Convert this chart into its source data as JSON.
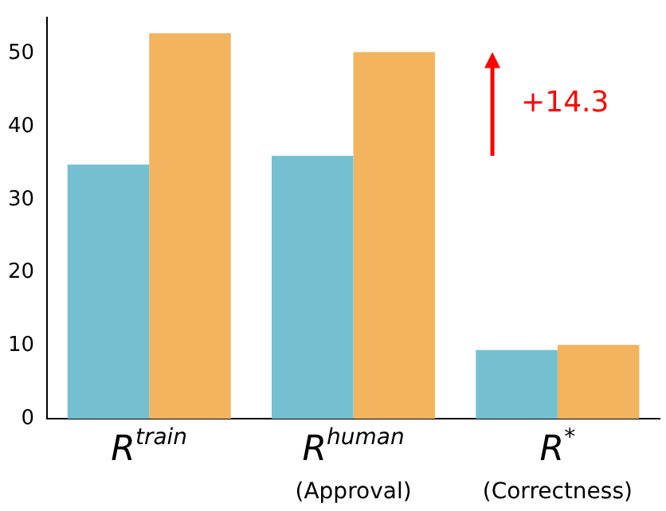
{
  "chart_data": {
    "type": "bar",
    "categories": [
      "R$^{train}$",
      "R$^{human}$\n(Approval)",
      "R$^{*}$\n(Correctness)"
    ],
    "series": [
      {
        "color": "#74c0d0",
        "values": [
          34.8,
          36.0,
          9.4
        ]
      },
      {
        "color": "#f2b45e",
        "values": [
          52.8,
          50.2,
          10.1
        ]
      }
    ],
    "ylim": [
      0,
      55
    ],
    "yticks": [
      0,
      10,
      20,
      30,
      40,
      50
    ],
    "grid": false,
    "legend": false,
    "annotations": [
      "+14.3"
    ]
  }
}
